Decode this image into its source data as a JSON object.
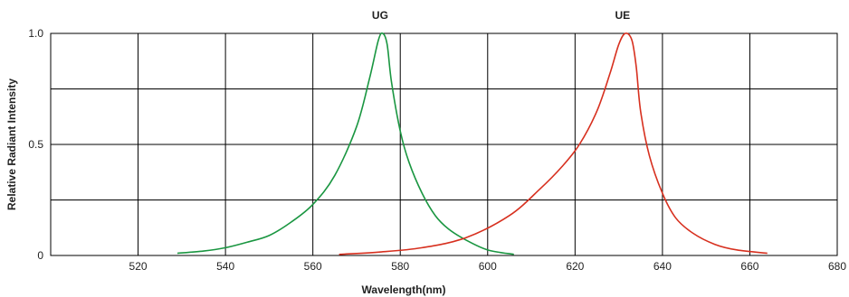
{
  "chart_data": {
    "type": "line",
    "title": "",
    "xlabel": "Wavelength(nm)",
    "ylabel": "Relative Radiant Intensity",
    "xlim": [
      500,
      680
    ],
    "ylim": [
      0,
      1.0
    ],
    "x_ticks": [
      520,
      540,
      560,
      580,
      600,
      620,
      640,
      660,
      680
    ],
    "y_ticks": [
      0,
      0.25,
      0.5,
      0.75,
      1.0
    ],
    "y_tick_labels": [
      "0",
      "",
      "0.5",
      "",
      "1.0"
    ],
    "grid": true,
    "series": [
      {
        "name": "UG",
        "color": "#1a9641",
        "points": [
          [
            529,
            0.01
          ],
          [
            535,
            0.02
          ],
          [
            540,
            0.035
          ],
          [
            545,
            0.06
          ],
          [
            550,
            0.09
          ],
          [
            555,
            0.15
          ],
          [
            560,
            0.23
          ],
          [
            565,
            0.36
          ],
          [
            570,
            0.58
          ],
          [
            573,
            0.8
          ],
          [
            575,
            0.97
          ],
          [
            576,
            1.0
          ],
          [
            577,
            0.95
          ],
          [
            578,
            0.78
          ],
          [
            580,
            0.56
          ],
          [
            582,
            0.42
          ],
          [
            585,
            0.28
          ],
          [
            588,
            0.18
          ],
          [
            591,
            0.12
          ],
          [
            595,
            0.07
          ],
          [
            600,
            0.025
          ],
          [
            606,
            0.005
          ]
        ]
      },
      {
        "name": "UE",
        "color": "#d7301f",
        "points": [
          [
            566,
            0.005
          ],
          [
            575,
            0.015
          ],
          [
            585,
            0.035
          ],
          [
            595,
            0.08
          ],
          [
            605,
            0.18
          ],
          [
            612,
            0.3
          ],
          [
            617,
            0.4
          ],
          [
            621,
            0.5
          ],
          [
            625,
            0.65
          ],
          [
            628,
            0.82
          ],
          [
            630,
            0.95
          ],
          [
            631.5,
            1.0
          ],
          [
            633,
            0.97
          ],
          [
            634,
            0.85
          ],
          [
            635,
            0.65
          ],
          [
            637,
            0.45
          ],
          [
            640,
            0.28
          ],
          [
            643,
            0.17
          ],
          [
            647,
            0.1
          ],
          [
            652,
            0.05
          ],
          [
            657,
            0.025
          ],
          [
            664,
            0.01
          ]
        ]
      }
    ]
  }
}
